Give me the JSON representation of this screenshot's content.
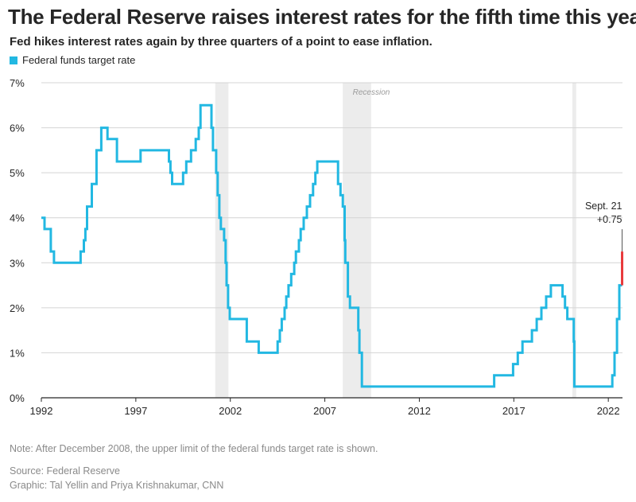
{
  "title": "The Federal Reserve raises interest rates for the fifth time this year",
  "subtitle": "Fed hikes interest rates again by three quarters of a point to ease inflation.",
  "legend": {
    "label": "Federal funds target rate",
    "color": "#22b8e2"
  },
  "footer": {
    "note": "Note: After December 2008, the upper limit of the federal funds target rate is shown.",
    "source": "Source: Federal Reserve",
    "credit": "Graphic: Tal Yellin and Priya Krishnakumar, CNN"
  },
  "colors": {
    "line": "#22b8e2",
    "highlight": "#e8393b",
    "recession": "#ececec",
    "grid": "#d4d4d4",
    "axis": "#262626",
    "text": "#262626",
    "muted": "#8a8a8a"
  },
  "chart_data": {
    "type": "line",
    "title": "The Federal Reserve raises interest rates for the fifth time this year",
    "xlabel": "",
    "ylabel": "",
    "xlim": [
      1992.0,
      2022.75
    ],
    "ylim": [
      0,
      7
    ],
    "x_ticks": [
      1992,
      1997,
      2002,
      2007,
      2012,
      2017,
      2022
    ],
    "y_ticks": [
      0,
      1,
      2,
      3,
      4,
      5,
      6,
      7
    ],
    "y_tick_labels": [
      "0%",
      "1%",
      "2%",
      "3%",
      "4%",
      "5%",
      "6%",
      "7%"
    ],
    "grid": true,
    "recessions": [
      {
        "start": 2001.2,
        "end": 2001.9,
        "label": ""
      },
      {
        "start": 2007.95,
        "end": 2009.45,
        "label": "Recession"
      },
      {
        "start": 2020.1,
        "end": 2020.3,
        "label": ""
      }
    ],
    "series": [
      {
        "name": "Federal funds target rate",
        "step": true,
        "points": [
          [
            1992.0,
            4.0
          ],
          [
            1992.17,
            3.75
          ],
          [
            1992.5,
            3.25
          ],
          [
            1992.67,
            3.0
          ],
          [
            1994.08,
            3.25
          ],
          [
            1994.25,
            3.5
          ],
          [
            1994.33,
            3.75
          ],
          [
            1994.42,
            4.25
          ],
          [
            1994.67,
            4.75
          ],
          [
            1994.92,
            5.5
          ],
          [
            1995.17,
            6.0
          ],
          [
            1995.5,
            5.75
          ],
          [
            1996.0,
            5.25
          ],
          [
            1997.25,
            5.5
          ],
          [
            1998.75,
            5.25
          ],
          [
            1998.83,
            5.0
          ],
          [
            1998.92,
            4.75
          ],
          [
            1999.5,
            5.0
          ],
          [
            1999.67,
            5.25
          ],
          [
            1999.92,
            5.5
          ],
          [
            2000.17,
            5.75
          ],
          [
            2000.33,
            6.0
          ],
          [
            2000.42,
            6.5
          ],
          [
            2001.0,
            6.0
          ],
          [
            2001.08,
            5.5
          ],
          [
            2001.25,
            5.0
          ],
          [
            2001.33,
            4.5
          ],
          [
            2001.42,
            4.0
          ],
          [
            2001.5,
            3.75
          ],
          [
            2001.67,
            3.5
          ],
          [
            2001.75,
            3.0
          ],
          [
            2001.8,
            2.5
          ],
          [
            2001.88,
            2.0
          ],
          [
            2001.97,
            1.75
          ],
          [
            2002.87,
            1.25
          ],
          [
            2003.5,
            1.0
          ],
          [
            2004.5,
            1.25
          ],
          [
            2004.62,
            1.5
          ],
          [
            2004.72,
            1.75
          ],
          [
            2004.87,
            2.0
          ],
          [
            2004.96,
            2.25
          ],
          [
            2005.08,
            2.5
          ],
          [
            2005.22,
            2.75
          ],
          [
            2005.38,
            3.0
          ],
          [
            2005.47,
            3.25
          ],
          [
            2005.63,
            3.5
          ],
          [
            2005.72,
            3.75
          ],
          [
            2005.88,
            4.0
          ],
          [
            2006.05,
            4.25
          ],
          [
            2006.22,
            4.5
          ],
          [
            2006.38,
            4.75
          ],
          [
            2006.5,
            5.0
          ],
          [
            2006.6,
            5.25
          ],
          [
            2007.7,
            4.75
          ],
          [
            2007.83,
            4.5
          ],
          [
            2007.95,
            4.25
          ],
          [
            2008.05,
            3.5
          ],
          [
            2008.08,
            3.0
          ],
          [
            2008.22,
            2.25
          ],
          [
            2008.33,
            2.0
          ],
          [
            2008.77,
            1.5
          ],
          [
            2008.83,
            1.0
          ],
          [
            2008.96,
            0.25
          ],
          [
            2015.96,
            0.5
          ],
          [
            2016.96,
            0.75
          ],
          [
            2017.21,
            1.0
          ],
          [
            2017.46,
            1.25
          ],
          [
            2017.96,
            1.5
          ],
          [
            2018.21,
            1.75
          ],
          [
            2018.46,
            2.0
          ],
          [
            2018.71,
            2.25
          ],
          [
            2018.96,
            2.5
          ],
          [
            2019.58,
            2.25
          ],
          [
            2019.71,
            2.0
          ],
          [
            2019.83,
            1.75
          ],
          [
            2020.17,
            1.25
          ],
          [
            2020.2,
            0.25
          ],
          [
            2022.21,
            0.5
          ],
          [
            2022.33,
            1.0
          ],
          [
            2022.46,
            1.75
          ],
          [
            2022.58,
            2.5
          ],
          [
            2022.73,
            2.5
          ]
        ]
      }
    ],
    "highlight": {
      "x": 2022.73,
      "from": 2.5,
      "to": 3.25
    },
    "annotation": {
      "line1": "Sept. 21",
      "line2": "+0.75"
    }
  }
}
